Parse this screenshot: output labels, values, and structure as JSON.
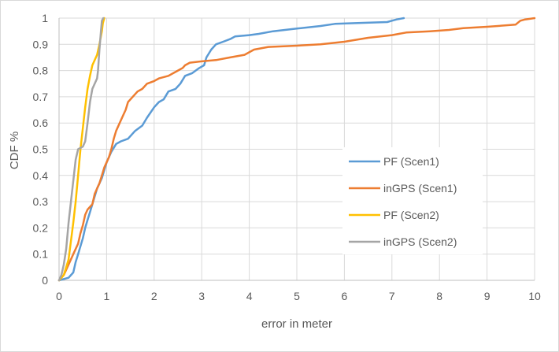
{
  "chart_data": {
    "type": "line",
    "title": "",
    "xlabel": "error in meter",
    "ylabel": "CDF %",
    "xlim": [
      0,
      10
    ],
    "ylim": [
      0,
      1
    ],
    "x_ticks": [
      "0",
      "1",
      "2",
      "3",
      "4",
      "5",
      "6",
      "7",
      "8",
      "9",
      "10"
    ],
    "y_ticks": [
      "0",
      "0.1",
      "0.2",
      "0.3",
      "0.4",
      "0.5",
      "0.6",
      "0.7",
      "0.8",
      "0.9",
      "1"
    ],
    "grid": true,
    "legend_position": "right",
    "series": [
      {
        "name": "PF (Scen1)",
        "color": "#5b9bd5",
        "points": [
          [
            0,
            0
          ],
          [
            0.2,
            0.01
          ],
          [
            0.3,
            0.03
          ],
          [
            0.35,
            0.07
          ],
          [
            0.4,
            0.1
          ],
          [
            0.45,
            0.13
          ],
          [
            0.5,
            0.16
          ],
          [
            0.55,
            0.2
          ],
          [
            0.6,
            0.23
          ],
          [
            0.65,
            0.26
          ],
          [
            0.7,
            0.29
          ],
          [
            0.75,
            0.32
          ],
          [
            0.8,
            0.35
          ],
          [
            0.85,
            0.37
          ],
          [
            0.9,
            0.39
          ],
          [
            0.95,
            0.42
          ],
          [
            1.0,
            0.45
          ],
          [
            1.1,
            0.49
          ],
          [
            1.2,
            0.52
          ],
          [
            1.3,
            0.53
          ],
          [
            1.45,
            0.54
          ],
          [
            1.6,
            0.57
          ],
          [
            1.75,
            0.59
          ],
          [
            1.85,
            0.62
          ],
          [
            2.0,
            0.66
          ],
          [
            2.1,
            0.68
          ],
          [
            2.2,
            0.69
          ],
          [
            2.3,
            0.72
          ],
          [
            2.45,
            0.73
          ],
          [
            2.55,
            0.75
          ],
          [
            2.65,
            0.78
          ],
          [
            2.8,
            0.79
          ],
          [
            2.95,
            0.81
          ],
          [
            3.05,
            0.82
          ],
          [
            3.1,
            0.85
          ],
          [
            3.2,
            0.88
          ],
          [
            3.3,
            0.9
          ],
          [
            3.45,
            0.91
          ],
          [
            3.6,
            0.92
          ],
          [
            3.7,
            0.93
          ],
          [
            4.0,
            0.935
          ],
          [
            4.2,
            0.94
          ],
          [
            4.5,
            0.95
          ],
          [
            5.0,
            0.96
          ],
          [
            5.5,
            0.97
          ],
          [
            5.8,
            0.978
          ],
          [
            6.4,
            0.982
          ],
          [
            6.9,
            0.985
          ],
          [
            7.0,
            0.99
          ],
          [
            7.1,
            0.995
          ],
          [
            7.25,
            1.0
          ]
        ]
      },
      {
        "name": "inGPS (Scen1)",
        "color": "#ed7d31",
        "points": [
          [
            0,
            0
          ],
          [
            0.1,
            0.02
          ],
          [
            0.2,
            0.06
          ],
          [
            0.3,
            0.1
          ],
          [
            0.4,
            0.14
          ],
          [
            0.45,
            0.18
          ],
          [
            0.5,
            0.21
          ],
          [
            0.55,
            0.25
          ],
          [
            0.6,
            0.27
          ],
          [
            0.7,
            0.29
          ],
          [
            0.75,
            0.33
          ],
          [
            0.8,
            0.35
          ],
          [
            0.85,
            0.37
          ],
          [
            0.9,
            0.4
          ],
          [
            0.95,
            0.43
          ],
          [
            1.0,
            0.45
          ],
          [
            1.05,
            0.47
          ],
          [
            1.1,
            0.5
          ],
          [
            1.15,
            0.54
          ],
          [
            1.2,
            0.57
          ],
          [
            1.3,
            0.61
          ],
          [
            1.35,
            0.63
          ],
          [
            1.4,
            0.65
          ],
          [
            1.45,
            0.68
          ],
          [
            1.55,
            0.7
          ],
          [
            1.65,
            0.72
          ],
          [
            1.75,
            0.73
          ],
          [
            1.85,
            0.75
          ],
          [
            2.0,
            0.76
          ],
          [
            2.1,
            0.77
          ],
          [
            2.3,
            0.78
          ],
          [
            2.5,
            0.8
          ],
          [
            2.6,
            0.81
          ],
          [
            2.65,
            0.82
          ],
          [
            2.75,
            0.83
          ],
          [
            3.0,
            0.835
          ],
          [
            3.3,
            0.84
          ],
          [
            3.6,
            0.85
          ],
          [
            3.9,
            0.86
          ],
          [
            4.1,
            0.88
          ],
          [
            4.4,
            0.89
          ],
          [
            5.0,
            0.895
          ],
          [
            5.5,
            0.9
          ],
          [
            6.0,
            0.91
          ],
          [
            6.5,
            0.925
          ],
          [
            7.0,
            0.935
          ],
          [
            7.3,
            0.945
          ],
          [
            7.8,
            0.95
          ],
          [
            8.2,
            0.955
          ],
          [
            8.5,
            0.962
          ],
          [
            9.0,
            0.967
          ],
          [
            9.6,
            0.975
          ],
          [
            9.7,
            0.99
          ],
          [
            9.8,
            0.995
          ],
          [
            10.0,
            1.0
          ]
        ]
      },
      {
        "name": "PF (Scen2)",
        "color": "#ffc000",
        "points": [
          [
            0,
            0
          ],
          [
            0.1,
            0.02
          ],
          [
            0.15,
            0.05
          ],
          [
            0.2,
            0.08
          ],
          [
            0.25,
            0.15
          ],
          [
            0.3,
            0.22
          ],
          [
            0.35,
            0.3
          ],
          [
            0.4,
            0.4
          ],
          [
            0.45,
            0.5
          ],
          [
            0.5,
            0.58
          ],
          [
            0.55,
            0.66
          ],
          [
            0.6,
            0.73
          ],
          [
            0.65,
            0.78
          ],
          [
            0.7,
            0.82
          ],
          [
            0.8,
            0.86
          ],
          [
            0.85,
            0.9
          ],
          [
            0.9,
            0.95
          ],
          [
            0.92,
            0.98
          ],
          [
            0.95,
            1.0
          ]
        ]
      },
      {
        "name": "inGPS (Scen2)",
        "color": "#a5a5a5",
        "points": [
          [
            0,
            0
          ],
          [
            0.05,
            0.02
          ],
          [
            0.1,
            0.06
          ],
          [
            0.15,
            0.12
          ],
          [
            0.2,
            0.22
          ],
          [
            0.25,
            0.3
          ],
          [
            0.3,
            0.38
          ],
          [
            0.35,
            0.46
          ],
          [
            0.4,
            0.5
          ],
          [
            0.5,
            0.51
          ],
          [
            0.55,
            0.53
          ],
          [
            0.6,
            0.6
          ],
          [
            0.65,
            0.68
          ],
          [
            0.7,
            0.73
          ],
          [
            0.8,
            0.77
          ],
          [
            0.82,
            0.8
          ],
          [
            0.85,
            0.88
          ],
          [
            0.88,
            0.95
          ],
          [
            0.9,
            0.99
          ],
          [
            0.93,
            1.0
          ]
        ]
      }
    ]
  }
}
